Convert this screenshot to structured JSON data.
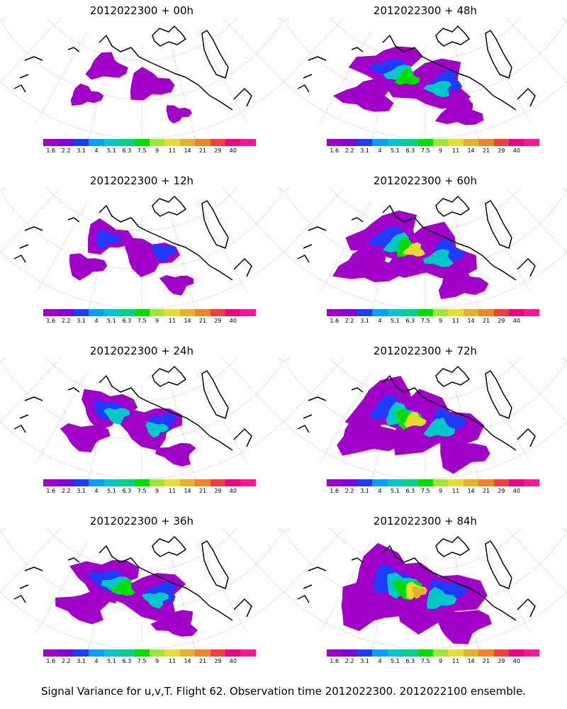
{
  "footer": "Signal Variance for u,v,T. Flight 62. Observation time 2012022300. 2012022100 ensemble.",
  "colorbar": {
    "labels": [
      "1.6",
      "2.2",
      "3.1",
      "4",
      "5.1",
      "6.3",
      "7.5",
      "9",
      "11",
      "14",
      "21",
      "29",
      "40"
    ],
    "colors": [
      "#a000c8",
      "#8200dc",
      "#1e3cff",
      "#00a0ff",
      "#00c8c8",
      "#00d28c",
      "#00dc00",
      "#a0e632",
      "#e6dc32",
      "#e6af2d",
      "#f08228",
      "#fa3c3c",
      "#f00082",
      "#ff1493"
    ]
  },
  "panels": [
    {
      "title": "2012022300 + 00h",
      "intensity": 0.15
    },
    {
      "title": "2012022300 + 12h",
      "intensity": 0.3
    },
    {
      "title": "2012022300 + 24h",
      "intensity": 0.45
    },
    {
      "title": "2012022300 + 36h",
      "intensity": 0.6
    },
    {
      "title": "2012022300 + 48h",
      "intensity": 0.65
    },
    {
      "title": "2012022300 + 60h",
      "intensity": 0.8
    },
    {
      "title": "2012022300 + 72h",
      "intensity": 0.9
    },
    {
      "title": "2012022300 + 84h",
      "intensity": 1.0
    }
  ]
}
